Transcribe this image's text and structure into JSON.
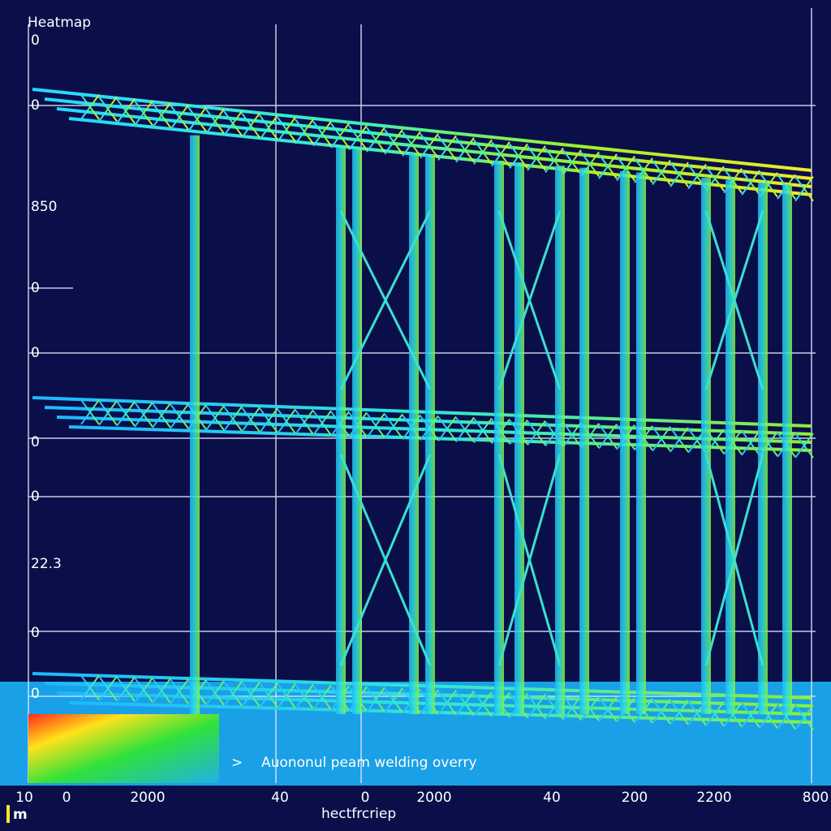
{
  "header": {
    "title": "Heatmap"
  },
  "y_labels": [
    "0",
    "0",
    "850",
    "0",
    "0",
    "0",
    "0",
    "22.3",
    "0",
    "0"
  ],
  "x_labels": [
    "10",
    "0",
    "2000",
    "40",
    "0",
    "2000",
    "40",
    "200",
    "2200",
    "800"
  ],
  "annotation": "Auononul peam welding overry",
  "x_axis_label": "hectfrcriep",
  "legend_label": "m"
}
